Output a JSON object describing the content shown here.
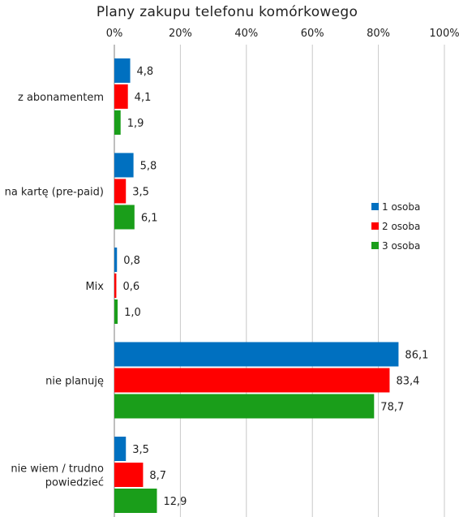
{
  "chart_data": {
    "type": "bar",
    "orientation": "horizontal",
    "title": "Plany zakupu telefonu komórkowego",
    "xlim": [
      0,
      100
    ],
    "x_ticks": [
      "0%",
      "20%",
      "40%",
      "60%",
      "80%",
      "100%"
    ],
    "x_tick_values": [
      0,
      20,
      40,
      60,
      80,
      100
    ],
    "categories": [
      [
        "z abonamentem"
      ],
      [
        "na kartę (pre-paid)"
      ],
      [
        "Mix"
      ],
      [
        "nie planuję"
      ],
      [
        "nie wiem / trudno",
        "powiedzieć"
      ]
    ],
    "series": [
      {
        "name": "1 osoba",
        "color": "#0070c0",
        "values": [
          4.8,
          5.8,
          0.8,
          86.1,
          3.5
        ],
        "labels": [
          "4,8",
          "5,8",
          "0,8",
          "86,1",
          "3,5"
        ]
      },
      {
        "name": "2 osoba",
        "color": "#ff0000",
        "values": [
          4.1,
          3.5,
          0.6,
          83.4,
          8.7
        ],
        "labels": [
          "4,1",
          "3,5",
          "0,6",
          "83,4",
          "8,7"
        ]
      },
      {
        "name": "3 osoba",
        "color": "#1a9e1a",
        "values": [
          1.9,
          6.1,
          1.0,
          78.7,
          12.9
        ],
        "labels": [
          "1,9",
          "6,1",
          "1,0",
          "78,7",
          "12,9"
        ]
      }
    ],
    "gridlines": true,
    "legend_position": "right"
  }
}
